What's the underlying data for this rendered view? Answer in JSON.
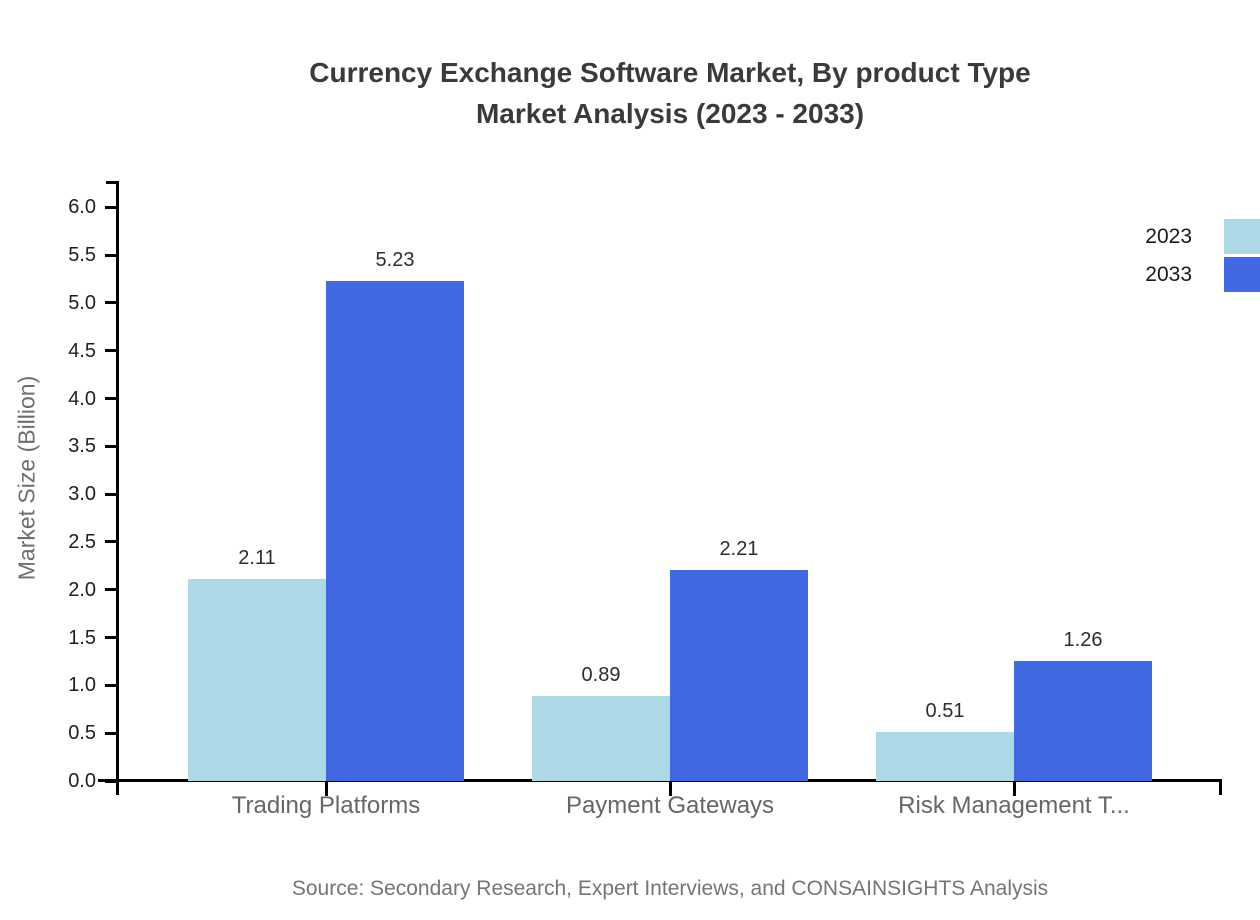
{
  "title": {
    "line1": "Currency Exchange Software Market, By product Type",
    "line2": "Market Analysis (2023 - 2033)"
  },
  "source_note": "Source: Secondary Research, Expert Interviews, and CONSAINSIGHTS Analysis",
  "chart_data": {
    "type": "bar",
    "title": "Currency Exchange Software Market, By product Type Market Analysis (2023 - 2033)",
    "xlabel": "",
    "ylabel": "Market Size (Billion)",
    "categories": [
      "Trading Platforms",
      "Payment Gateways",
      "Risk Management T..."
    ],
    "series": [
      {
        "name": "2023",
        "color": "#ADD8E6",
        "values": [
          2.11,
          0.89,
          0.51
        ]
      },
      {
        "name": "2033",
        "color": "#4169E1",
        "values": [
          5.23,
          2.21,
          1.26
        ]
      }
    ],
    "value_labels": [
      "2.11",
      "5.23",
      "0.89",
      "2.21",
      "0.51",
      "1.26"
    ],
    "ylim": [
      0.0,
      6.0
    ],
    "ytick_step": 0.5,
    "yticks": [
      "0.0",
      "0.5",
      "1.0",
      "1.5",
      "2.0",
      "2.5",
      "3.0",
      "3.5",
      "4.0",
      "4.5",
      "5.0",
      "5.5",
      "6.0"
    ],
    "grid": false,
    "legend_position": "top-right"
  },
  "colors": {
    "series_2023": "#ADD8E6",
    "series_2033": "#4169E1",
    "axis": "#000000",
    "title_text": "#3a3a3a",
    "category_text": "#666666",
    "source_text": "#757575"
  }
}
